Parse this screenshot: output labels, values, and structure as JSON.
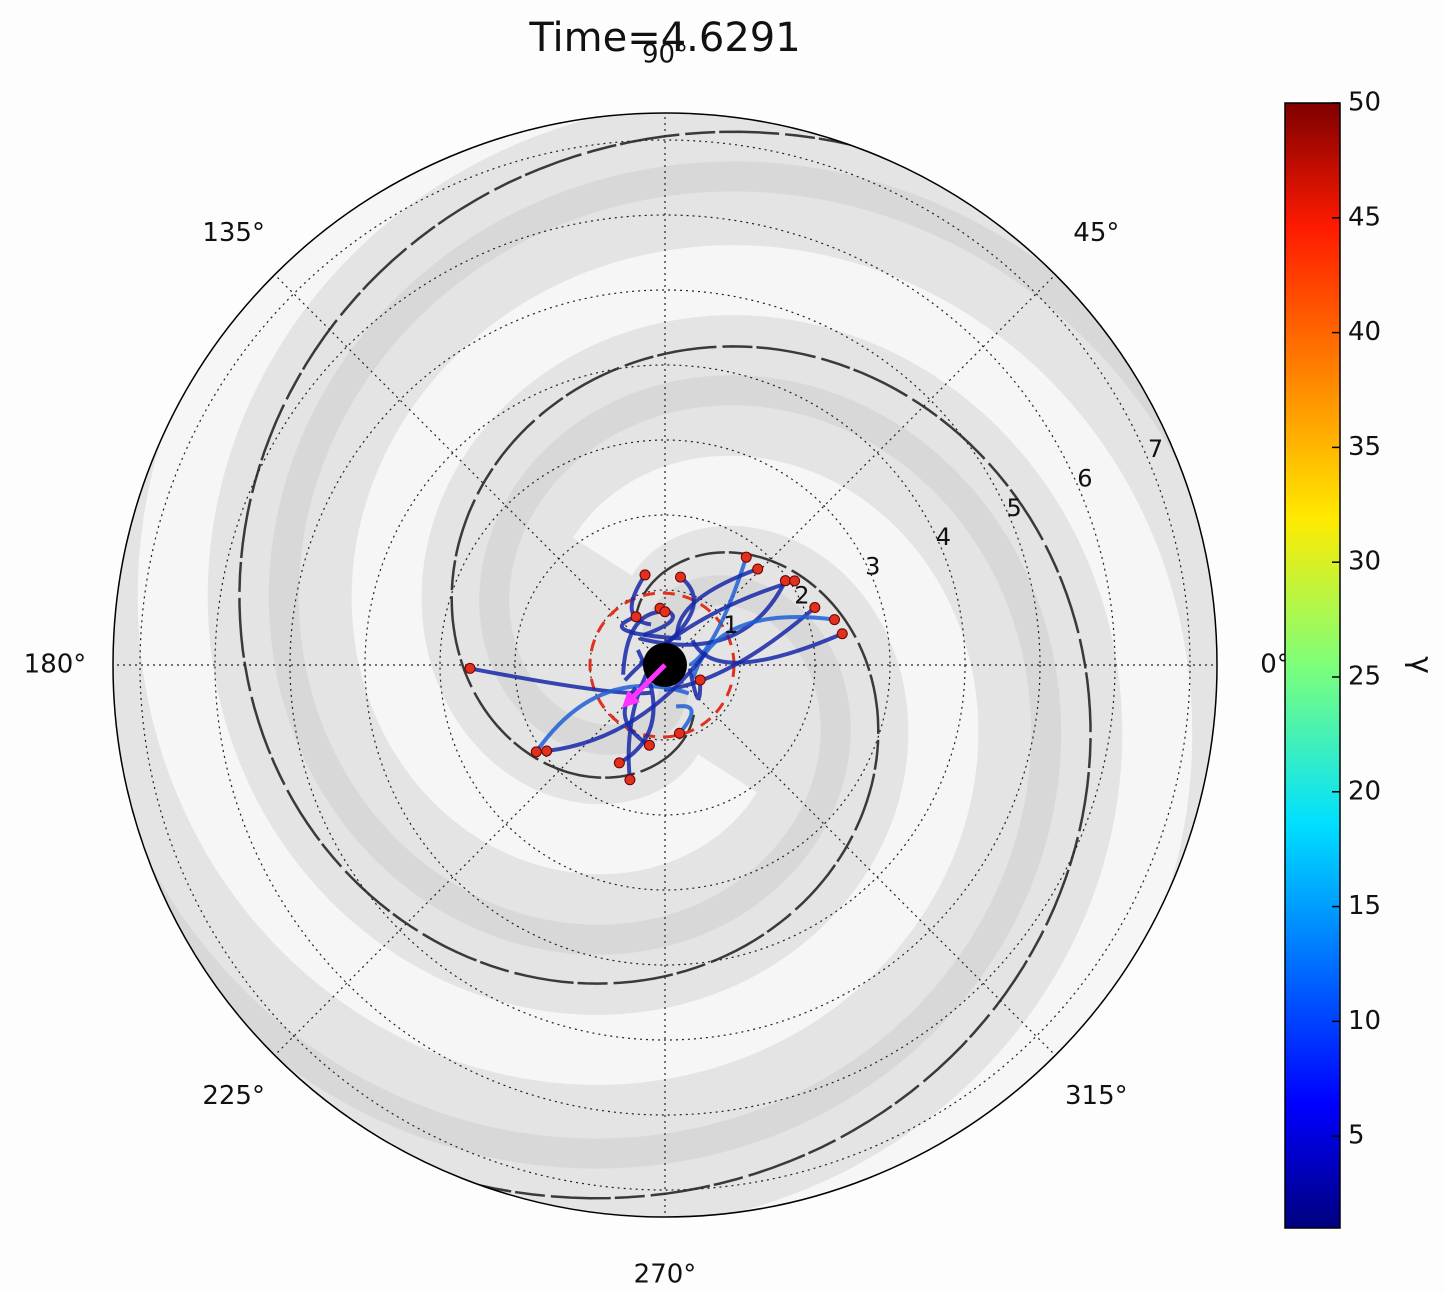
{
  "chart_data": {
    "type": "polar_scatter",
    "title": "Time=4.6291",
    "theta_ticks": [
      {
        "value": 0,
        "label": "0°"
      },
      {
        "value": 45,
        "label": "45°"
      },
      {
        "value": 90,
        "label": "90°"
      },
      {
        "value": 135,
        "label": "135°"
      },
      {
        "value": 180,
        "label": "180°"
      },
      {
        "value": 225,
        "label": "225°"
      },
      {
        "value": 270,
        "label": "270°"
      },
      {
        "value": 315,
        "label": "315°"
      }
    ],
    "rlim": [
      0,
      7.36
    ],
    "rticks": [
      1,
      2,
      3,
      4,
      5,
      6,
      7
    ],
    "grid": true,
    "series": [
      {
        "color": "#e0301e",
        "r": [
          1.8,
          1.78,
          1.96,
          2.06,
          2.14,
          2.34,
          2.4,
          1.23,
          1.19,
          2.6,
          2.07,
          1.95,
          1.6,
          1.44,
          1.09,
          0.93,
          0.51,
          0.75,
          0.76,
          0.71
        ],
        "theta": [
          53,
          46,
          35,
          33,
          21,
          15,
          10,
          102.5,
          80,
          181,
          214,
          216,
          253,
          245,
          259,
          282,
          337,
          121,
          95,
          90
        ]
      }
    ],
    "colorbar": {
      "label": "γ",
      "lim": [
        1,
        50
      ],
      "ticks": [
        5,
        10,
        15,
        20,
        25,
        30,
        35,
        40,
        45,
        50
      ]
    }
  }
}
